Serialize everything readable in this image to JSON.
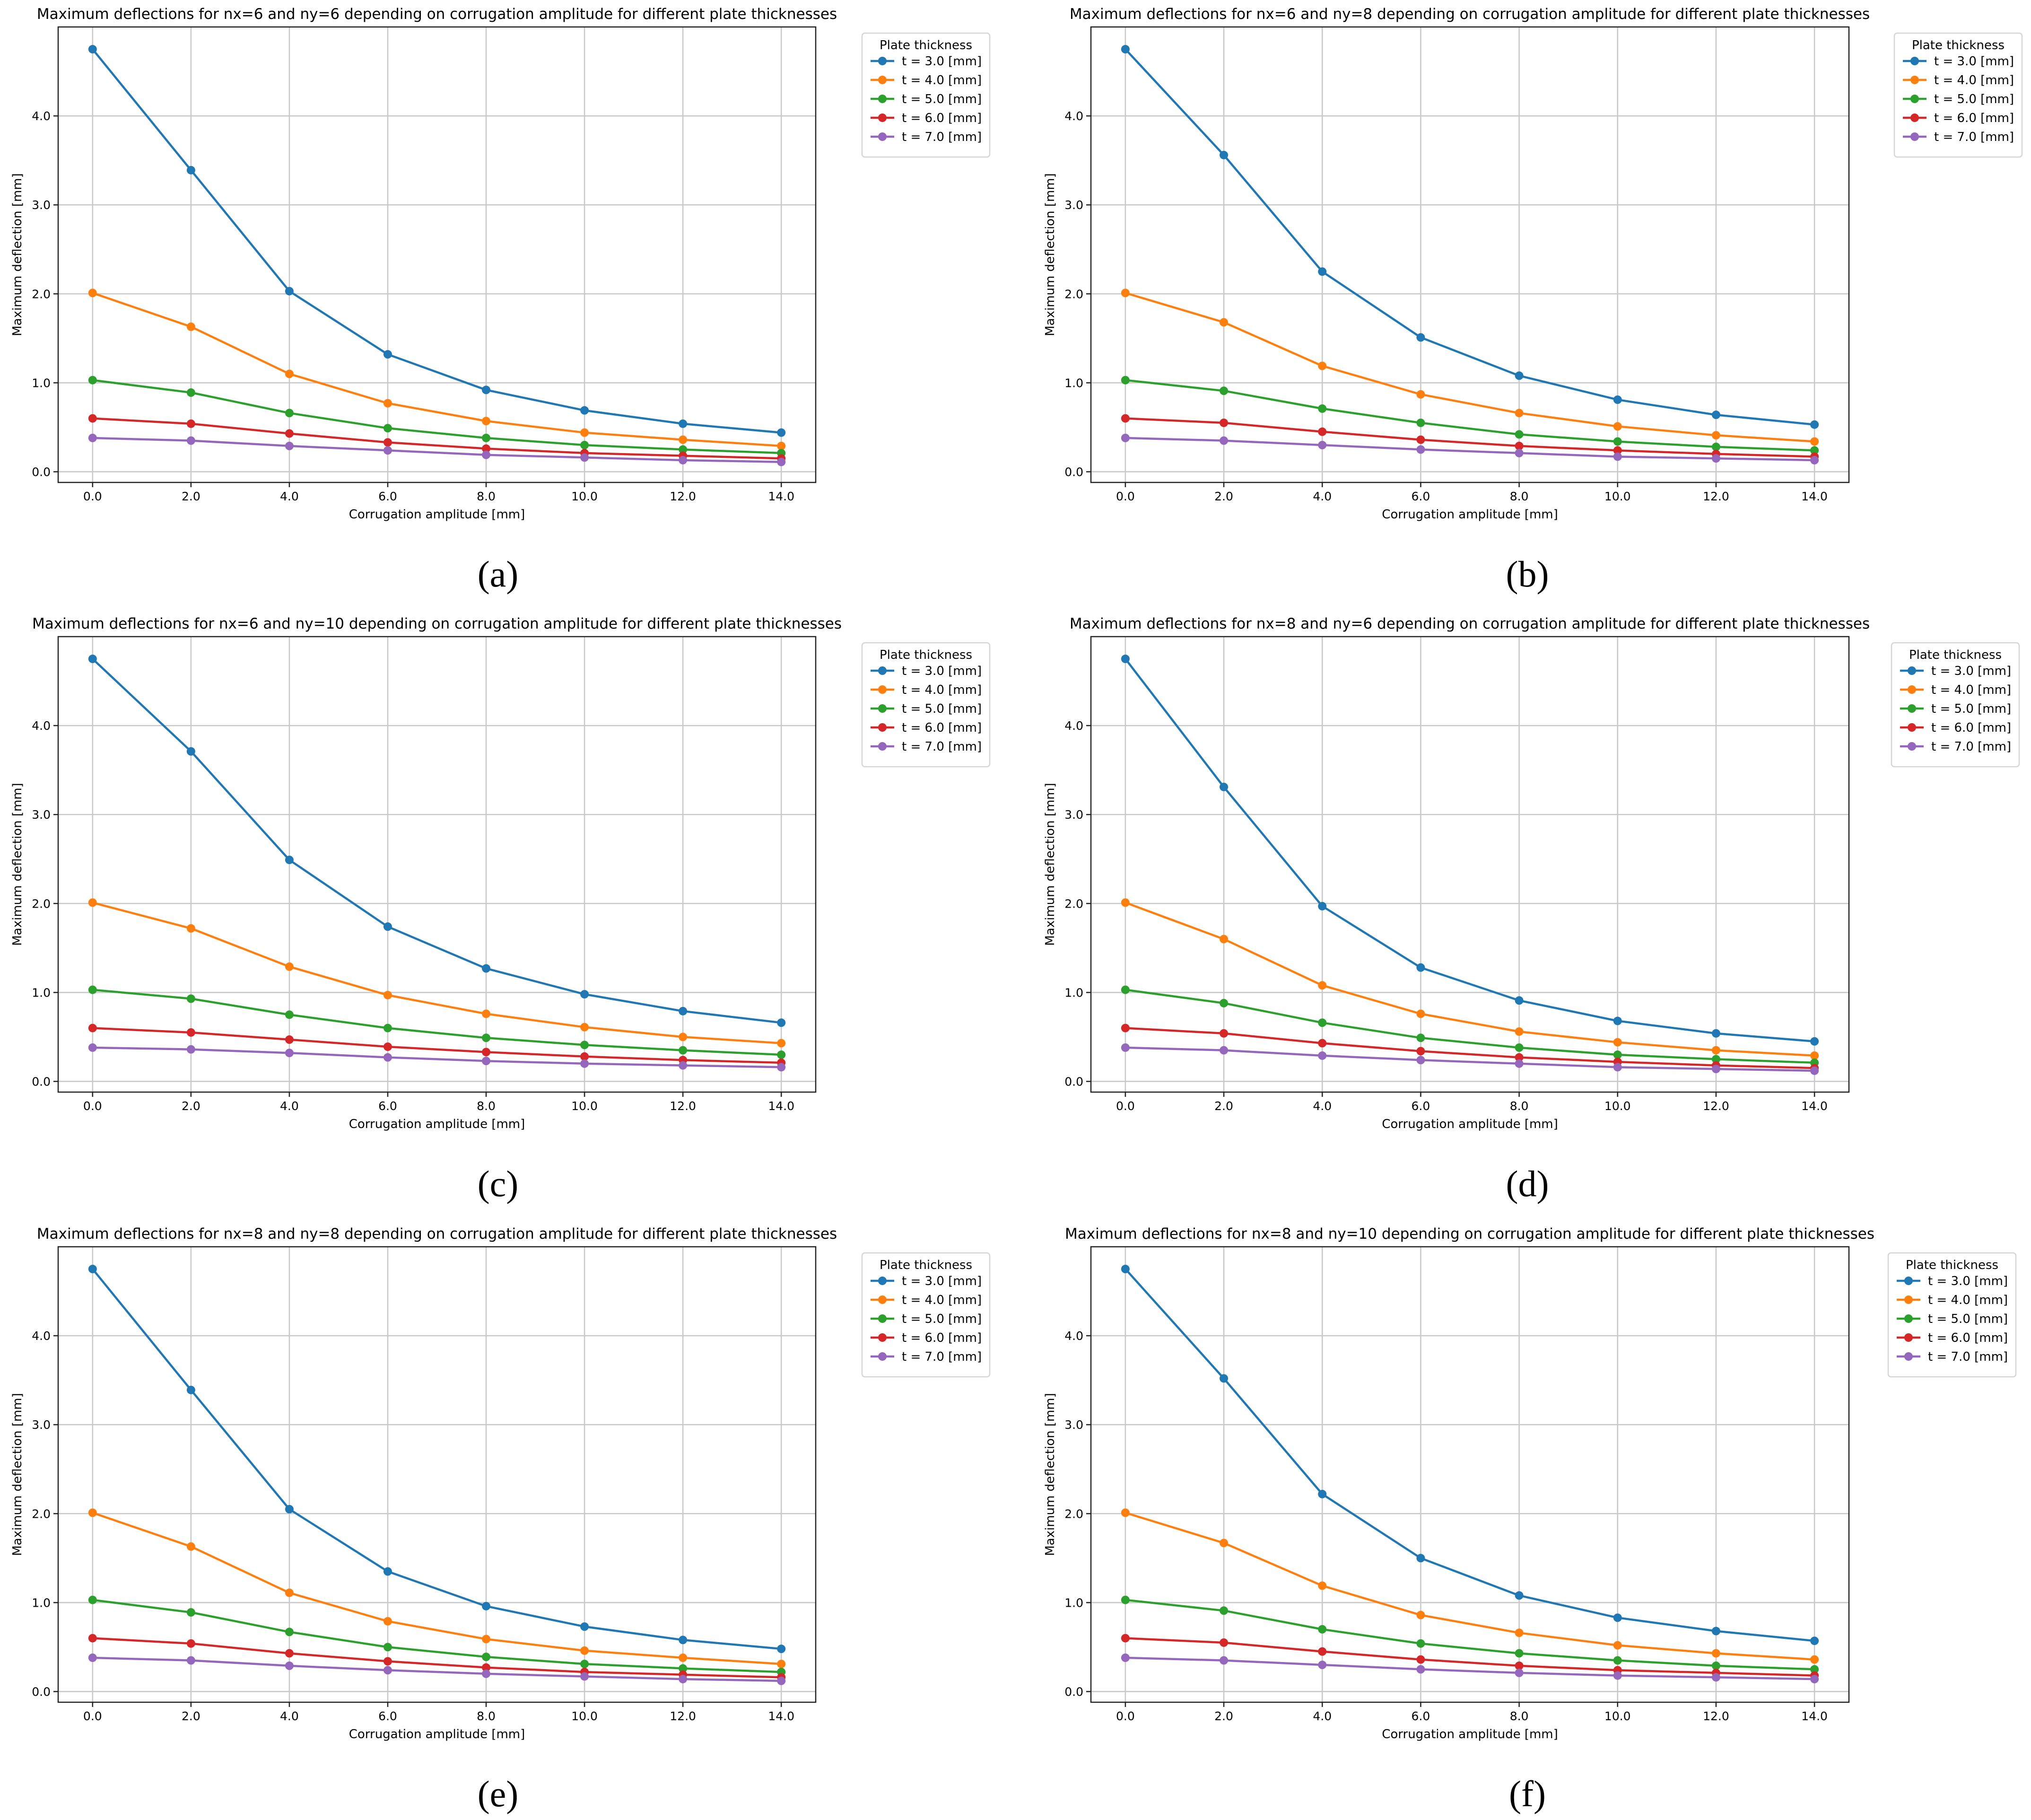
{
  "figure": {
    "captions": [
      "(a)",
      "(b)",
      "(c)",
      "(d)",
      "(e)",
      "(f)"
    ]
  },
  "chart_data": [
    {
      "type": "line",
      "title": "Maximum deflections for nx=6 and ny=6 depending on corrugation amplitude for different plate thicknesses",
      "xlabel": "Corrugation amplitude [mm]",
      "ylabel": "Maximum deflection [mm]",
      "x": [
        0,
        2,
        4,
        6,
        8,
        10,
        12,
        14
      ],
      "xticks": [
        "0.0",
        "2.0",
        "4.0",
        "6.0",
        "8.0",
        "10.0",
        "12.0",
        "14.0"
      ],
      "yticks": [
        "0.0",
        "1.0",
        "2.0",
        "3.0",
        "4.0"
      ],
      "xlim": [
        -0.7,
        14.7
      ],
      "ylim": [
        -0.12,
        5.0
      ],
      "grid": true,
      "legend_title": "Plate thickness",
      "legend_position": "outside-top-right",
      "series": [
        {
          "name": "t = 3.0 [mm]",
          "color": "#1f77b4",
          "values": [
            4.75,
            3.39,
            2.03,
            1.32,
            0.92,
            0.69,
            0.54,
            0.44
          ]
        },
        {
          "name": "t = 4.0 [mm]",
          "color": "#ff7f0e",
          "values": [
            2.01,
            1.63,
            1.1,
            0.77,
            0.57,
            0.44,
            0.36,
            0.29
          ]
        },
        {
          "name": "t = 5.0 [mm]",
          "color": "#2ca02c",
          "values": [
            1.03,
            0.89,
            0.66,
            0.49,
            0.38,
            0.3,
            0.25,
            0.21
          ]
        },
        {
          "name": "t = 6.0 [mm]",
          "color": "#d62728",
          "values": [
            0.6,
            0.54,
            0.43,
            0.33,
            0.26,
            0.21,
            0.18,
            0.15
          ]
        },
        {
          "name": "t = 7.0 [mm]",
          "color": "#9467bd",
          "values": [
            0.38,
            0.35,
            0.29,
            0.24,
            0.19,
            0.16,
            0.13,
            0.11
          ]
        }
      ]
    },
    {
      "type": "line",
      "title": "Maximum deflections for nx=6 and ny=8 depending on corrugation amplitude for different plate thicknesses",
      "xlabel": "Corrugation amplitude [mm]",
      "ylabel": "Maximum deflection [mm]",
      "x": [
        0,
        2,
        4,
        6,
        8,
        10,
        12,
        14
      ],
      "xticks": [
        "0.0",
        "2.0",
        "4.0",
        "6.0",
        "8.0",
        "10.0",
        "12.0",
        "14.0"
      ],
      "yticks": [
        "0.0",
        "1.0",
        "2.0",
        "3.0",
        "4.0"
      ],
      "xlim": [
        -0.7,
        14.7
      ],
      "ylim": [
        -0.12,
        5.0
      ],
      "grid": true,
      "legend_title": "Plate thickness",
      "legend_position": "outside-top-right",
      "series": [
        {
          "name": "t = 3.0 [mm]",
          "color": "#1f77b4",
          "values": [
            4.75,
            3.56,
            2.25,
            1.51,
            1.08,
            0.81,
            0.64,
            0.53
          ]
        },
        {
          "name": "t = 4.0 [mm]",
          "color": "#ff7f0e",
          "values": [
            2.01,
            1.68,
            1.19,
            0.87,
            0.66,
            0.51,
            0.41,
            0.34
          ]
        },
        {
          "name": "t = 5.0 [mm]",
          "color": "#2ca02c",
          "values": [
            1.03,
            0.91,
            0.71,
            0.55,
            0.42,
            0.34,
            0.28,
            0.24
          ]
        },
        {
          "name": "t = 6.0 [mm]",
          "color": "#d62728",
          "values": [
            0.6,
            0.55,
            0.45,
            0.36,
            0.29,
            0.24,
            0.2,
            0.17
          ]
        },
        {
          "name": "t = 7.0 [mm]",
          "color": "#9467bd",
          "values": [
            0.38,
            0.35,
            0.3,
            0.25,
            0.21,
            0.17,
            0.15,
            0.13
          ]
        }
      ]
    },
    {
      "type": "line",
      "title": "Maximum deflections for nx=6 and ny=10 depending on corrugation amplitude for different plate thicknesses",
      "xlabel": "Corrugation amplitude [mm]",
      "ylabel": "Maximum deflection [mm]",
      "x": [
        0,
        2,
        4,
        6,
        8,
        10,
        12,
        14
      ],
      "xticks": [
        "0.0",
        "2.0",
        "4.0",
        "6.0",
        "8.0",
        "10.0",
        "12.0",
        "14.0"
      ],
      "yticks": [
        "0.0",
        "1.0",
        "2.0",
        "3.0",
        "4.0"
      ],
      "xlim": [
        -0.7,
        14.7
      ],
      "ylim": [
        -0.12,
        5.0
      ],
      "grid": true,
      "legend_title": "Plate thickness",
      "legend_position": "outside-top-right",
      "series": [
        {
          "name": "t = 3.0 [mm]",
          "color": "#1f77b4",
          "values": [
            4.75,
            3.71,
            2.49,
            1.74,
            1.27,
            0.98,
            0.79,
            0.66
          ]
        },
        {
          "name": "t = 4.0 [mm]",
          "color": "#ff7f0e",
          "values": [
            2.01,
            1.72,
            1.29,
            0.97,
            0.76,
            0.61,
            0.5,
            0.43
          ]
        },
        {
          "name": "t = 5.0 [mm]",
          "color": "#2ca02c",
          "values": [
            1.03,
            0.93,
            0.75,
            0.6,
            0.49,
            0.41,
            0.35,
            0.3
          ]
        },
        {
          "name": "t = 6.0 [mm]",
          "color": "#d62728",
          "values": [
            0.6,
            0.55,
            0.47,
            0.39,
            0.33,
            0.28,
            0.24,
            0.21
          ]
        },
        {
          "name": "t = 7.0 [mm]",
          "color": "#9467bd",
          "values": [
            0.38,
            0.36,
            0.32,
            0.27,
            0.23,
            0.2,
            0.18,
            0.16
          ]
        }
      ]
    },
    {
      "type": "line",
      "title": "Maximum deflections for nx=8 and ny=6 depending on corrugation amplitude for different plate thicknesses",
      "xlabel": "Corrugation amplitude [mm]",
      "ylabel": "Maximum deflection [mm]",
      "x": [
        0,
        2,
        4,
        6,
        8,
        10,
        12,
        14
      ],
      "xticks": [
        "0.0",
        "2.0",
        "4.0",
        "6.0",
        "8.0",
        "10.0",
        "12.0",
        "14.0"
      ],
      "yticks": [
        "0.0",
        "1.0",
        "2.0",
        "3.0",
        "4.0"
      ],
      "xlim": [
        -0.7,
        14.7
      ],
      "ylim": [
        -0.12,
        5.0
      ],
      "grid": true,
      "legend_title": "Plate thickness",
      "legend_position": "outside-top-right",
      "series": [
        {
          "name": "t = 3.0 [mm]",
          "color": "#1f77b4",
          "values": [
            4.75,
            3.31,
            1.97,
            1.28,
            0.91,
            0.68,
            0.54,
            0.45
          ]
        },
        {
          "name": "t = 4.0 [mm]",
          "color": "#ff7f0e",
          "values": [
            2.01,
            1.6,
            1.08,
            0.76,
            0.56,
            0.44,
            0.35,
            0.29
          ]
        },
        {
          "name": "t = 5.0 [mm]",
          "color": "#2ca02c",
          "values": [
            1.03,
            0.88,
            0.66,
            0.49,
            0.38,
            0.3,
            0.25,
            0.21
          ]
        },
        {
          "name": "t = 6.0 [mm]",
          "color": "#d62728",
          "values": [
            0.6,
            0.54,
            0.43,
            0.34,
            0.27,
            0.22,
            0.18,
            0.15
          ]
        },
        {
          "name": "t = 7.0 [mm]",
          "color": "#9467bd",
          "values": [
            0.38,
            0.35,
            0.29,
            0.24,
            0.2,
            0.16,
            0.14,
            0.12
          ]
        }
      ]
    },
    {
      "type": "line",
      "title": "Maximum deflections for nx=8 and ny=8 depending on corrugation amplitude for different plate thicknesses",
      "xlabel": "Corrugation amplitude [mm]",
      "ylabel": "Maximum deflection [mm]",
      "x": [
        0,
        2,
        4,
        6,
        8,
        10,
        12,
        14
      ],
      "xticks": [
        "0.0",
        "2.0",
        "4.0",
        "6.0",
        "8.0",
        "10.0",
        "12.0",
        "14.0"
      ],
      "yticks": [
        "0.0",
        "1.0",
        "2.0",
        "3.0",
        "4.0"
      ],
      "xlim": [
        -0.7,
        14.7
      ],
      "ylim": [
        -0.12,
        5.0
      ],
      "grid": true,
      "legend_title": "Plate thickness",
      "legend_position": "outside-top-right",
      "series": [
        {
          "name": "t = 3.0 [mm]",
          "color": "#1f77b4",
          "values": [
            4.75,
            3.39,
            2.05,
            1.35,
            0.96,
            0.73,
            0.58,
            0.48
          ]
        },
        {
          "name": "t = 4.0 [mm]",
          "color": "#ff7f0e",
          "values": [
            2.01,
            1.63,
            1.11,
            0.79,
            0.59,
            0.46,
            0.38,
            0.31
          ]
        },
        {
          "name": "t = 5.0 [mm]",
          "color": "#2ca02c",
          "values": [
            1.03,
            0.89,
            0.67,
            0.5,
            0.39,
            0.31,
            0.26,
            0.22
          ]
        },
        {
          "name": "t = 6.0 [mm]",
          "color": "#d62728",
          "values": [
            0.6,
            0.54,
            0.43,
            0.34,
            0.27,
            0.22,
            0.19,
            0.16
          ]
        },
        {
          "name": "t = 7.0 [mm]",
          "color": "#9467bd",
          "values": [
            0.38,
            0.35,
            0.29,
            0.24,
            0.2,
            0.17,
            0.14,
            0.12
          ]
        }
      ]
    },
    {
      "type": "line",
      "title": "Maximum deflections for nx=8 and ny=10 depending on corrugation amplitude for different plate thicknesses",
      "xlabel": "Corrugation amplitude [mm]",
      "ylabel": "Maximum deflection [mm]",
      "x": [
        0,
        2,
        4,
        6,
        8,
        10,
        12,
        14
      ],
      "xticks": [
        "0.0",
        "2.0",
        "4.0",
        "6.0",
        "8.0",
        "10.0",
        "12.0",
        "14.0"
      ],
      "yticks": [
        "0.0",
        "1.0",
        "2.0",
        "3.0",
        "4.0"
      ],
      "xlim": [
        -0.7,
        14.7
      ],
      "ylim": [
        -0.12,
        5.0
      ],
      "grid": true,
      "legend_title": "Plate thickness",
      "legend_position": "outside-top-right",
      "series": [
        {
          "name": "t = 3.0 [mm]",
          "color": "#1f77b4",
          "values": [
            4.75,
            3.52,
            2.22,
            1.5,
            1.08,
            0.83,
            0.68,
            0.57
          ]
        },
        {
          "name": "t = 4.0 [mm]",
          "color": "#ff7f0e",
          "values": [
            2.01,
            1.67,
            1.19,
            0.86,
            0.66,
            0.52,
            0.43,
            0.36
          ]
        },
        {
          "name": "t = 5.0 [mm]",
          "color": "#2ca02c",
          "values": [
            1.03,
            0.91,
            0.7,
            0.54,
            0.43,
            0.35,
            0.29,
            0.25
          ]
        },
        {
          "name": "t = 6.0 [mm]",
          "color": "#d62728",
          "values": [
            0.6,
            0.55,
            0.45,
            0.36,
            0.29,
            0.24,
            0.21,
            0.18
          ]
        },
        {
          "name": "t = 7.0 [mm]",
          "color": "#9467bd",
          "values": [
            0.38,
            0.35,
            0.3,
            0.25,
            0.21,
            0.18,
            0.16,
            0.14
          ]
        }
      ]
    }
  ]
}
